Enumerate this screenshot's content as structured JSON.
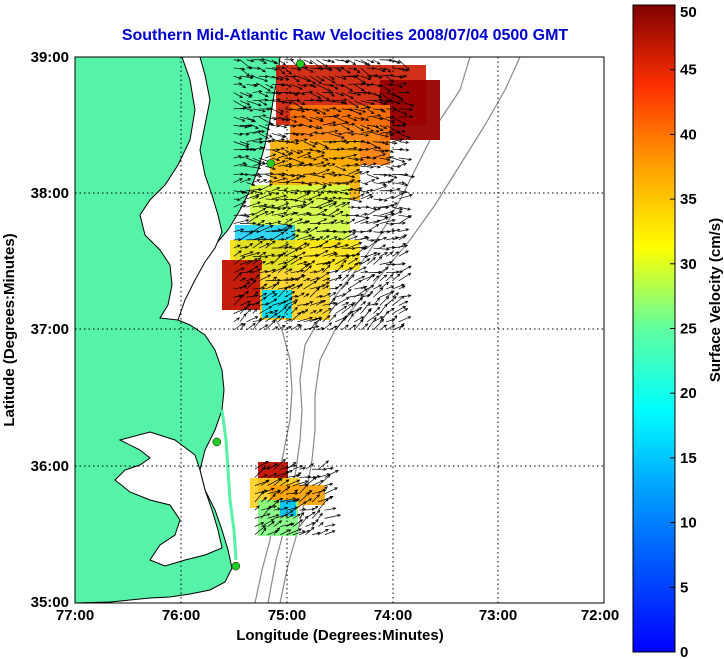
{
  "title": "Southern Mid-Atlantic Raw Velocities 2008/07/04 0500 GMT",
  "xlabel": "Longitude (Degrees:Minutes)",
  "ylabel": "Latitude (Degrees:Minutes)",
  "x_ticks": [
    "77:00",
    "76:00",
    "75:00",
    "74:00",
    "73:00",
    "72:00"
  ],
  "y_ticks": [
    "39:00",
    "38:00",
    "37:00",
    "36:00",
    "35:00"
  ],
  "colorbar": {
    "label": "Surface Velocity (cm/s)",
    "ticks": [
      "0",
      "5",
      "10",
      "15",
      "20",
      "25",
      "30",
      "35",
      "40",
      "45",
      "50"
    ],
    "range": [
      0,
      50
    ],
    "colormap": "jet"
  },
  "colors": {
    "title": "#0000cc",
    "land": "#55f2a8",
    "coast": "#000000",
    "bathymetry": "#888888",
    "station": "#22cc22",
    "grid": "#000000"
  },
  "map": {
    "lon_range": [
      -77,
      -72
    ],
    "lat_range": [
      35,
      39
    ],
    "grid": "dotted",
    "stations": [
      {
        "lon": -74.87,
        "lat": 38.95
      },
      {
        "lon": -75.15,
        "lat": 38.22
      },
      {
        "lon": -75.66,
        "lat": 36.18
      },
      {
        "lon": -75.48,
        "lat": 35.27
      }
    ],
    "current_regions": [
      {
        "name": "northern-patch",
        "lat_range": [
          37.0,
          39.0
        ],
        "lon_range": [
          -75.5,
          -73.9
        ],
        "speed_range_cm_s": [
          5,
          50
        ]
      },
      {
        "name": "southern-patch",
        "lat_range": [
          35.5,
          36.0
        ],
        "lon_range": [
          -75.3,
          -74.6
        ],
        "speed_range_cm_s": [
          10,
          50
        ]
      }
    ]
  }
}
